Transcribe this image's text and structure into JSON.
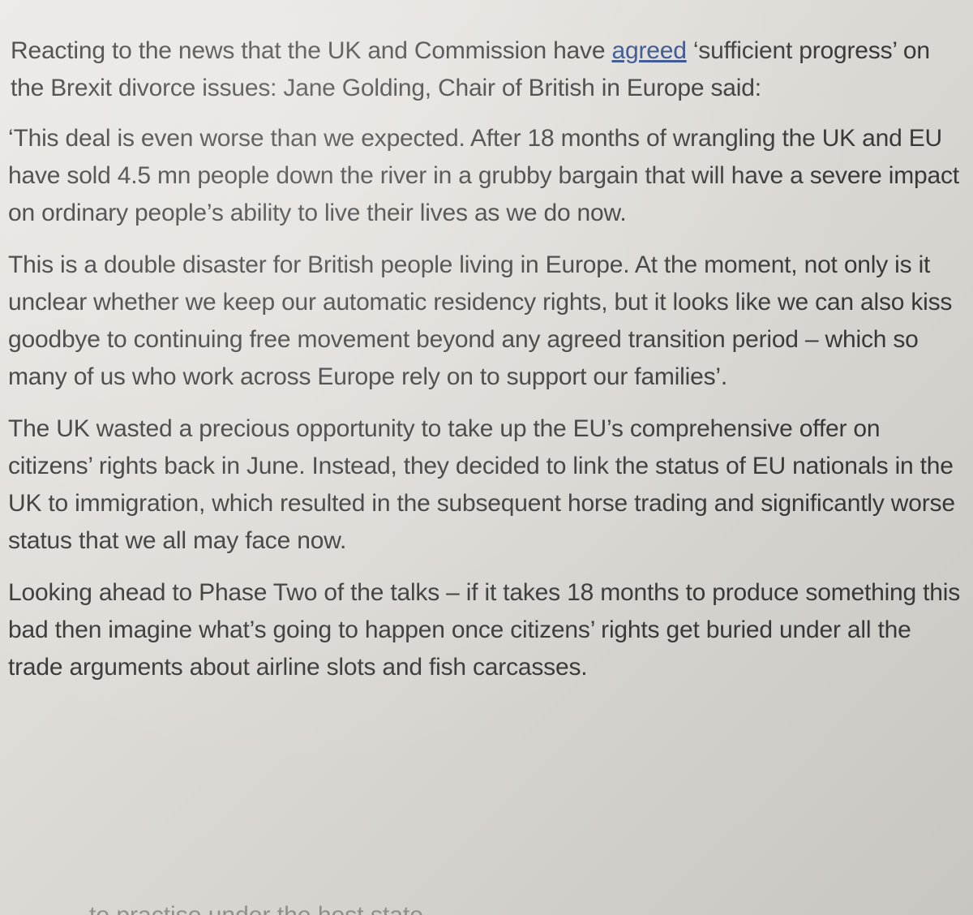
{
  "article": {
    "p1": {
      "before_link": "Reacting to the news that the UK and Commission have ",
      "link": "agreed",
      "after_link": " ‘sufficient progress’ on the Brexit divorce issues: Jane Golding, Chair of British in Europe said:"
    },
    "p2": "‘This deal is even worse than we expected. After 18 months of wrangling the UK and EU have sold 4.5 mn people down the river in a grubby bargain that will have a severe impact on ordinary people’s ability to live their lives as we do now.",
    "p3": "This is a double disaster for British people living in Europe. At the moment, not only is it unclear whether we keep our automatic residency rights, but it looks like we can also kiss goodbye to continuing free movement beyond any agreed transition period – which so many of us who work across Europe rely on to support our families’.",
    "p4": "The UK wasted a precious opportunity to take up the EU’s comprehensive offer on citizens’ rights back in June. Instead, they decided to link the status of EU nationals in the UK to immigration, which resulted in the subsequent horse trading and significantly worse status that we all may face now.",
    "p5": "Looking ahead to Phase Two of the talks – if it takes 18 months to produce something this bad then imagine what’s going to happen once citizens’ rights get buried under all the trade arguments about airline slots and fish carcasses.",
    "p6_partial": "to practise under the host state..."
  }
}
